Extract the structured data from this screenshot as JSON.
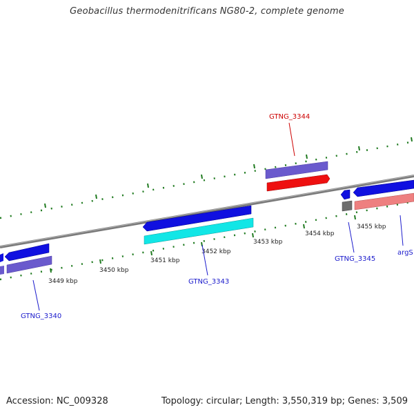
{
  "title": "Geobacillus thermodenitrificans NG80-2, complete genome",
  "footer": {
    "accession": "Accession: NC_009328",
    "stats": "Topology: circular; Length: 3,550,319 bp; Genes: 3,509"
  },
  "colors": {
    "backbone": "#7a7a7a",
    "tick": "#1f7a1f",
    "label_blue": "#1a1acc",
    "label_red": "#cc0000",
    "gene_blue": "#1010e0",
    "gene_purple": "#6a5acd",
    "gene_red": "#ee1010",
    "gene_cyan": "#12e6e6",
    "gene_pink": "#ee8080",
    "gene_gray": "#6e6e6e"
  },
  "scale": {
    "labels": [
      "3449 kbp",
      "3450 kbp",
      "3451 kbp",
      "3452 kbp",
      "3453 kbp",
      "3454 kbp",
      "3455 kbp"
    ]
  },
  "genes": {
    "labels": [
      {
        "text": "GTNG_3344",
        "color": "red"
      },
      {
        "text": "GTNG_3343",
        "color": "blue"
      },
      {
        "text": "GTNG_3345",
        "color": "blue"
      },
      {
        "text": "GTNG_3340",
        "color": "blue"
      },
      {
        "text": "argS",
        "color": "blue"
      }
    ]
  }
}
